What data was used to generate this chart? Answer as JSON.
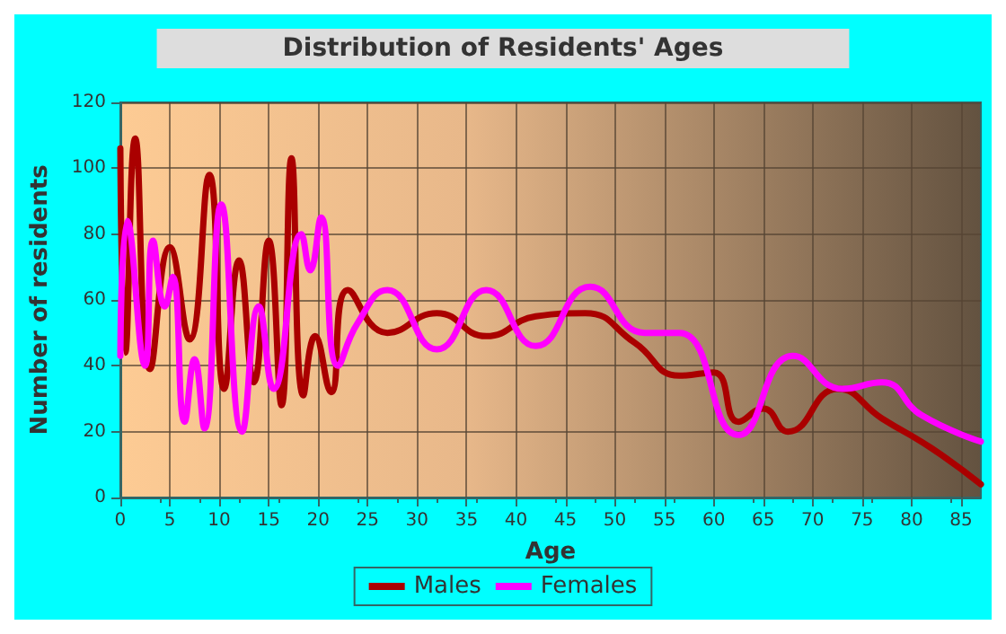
{
  "chart_data": {
    "type": "line",
    "title": "Distribution of Residents' Ages",
    "xlabel": "Age",
    "ylabel": "Number of residents",
    "xlim": [
      0,
      87
    ],
    "xticks": [
      0,
      5,
      10,
      15,
      20,
      25,
      30,
      35,
      40,
      45,
      50,
      55,
      60,
      65,
      70,
      75,
      80,
      85
    ],
    "ylim": [
      0,
      120
    ],
    "yticks": [
      0,
      20,
      40,
      60,
      80,
      100,
      120
    ],
    "grid": true,
    "legend": "bottom",
    "marker": "none",
    "line_style": "solid",
    "series": [
      {
        "name": "Males",
        "color": "#aa0000",
        "x": [
          0,
          0.5,
          1.5,
          3,
          5,
          7,
          9,
          10.5,
          12,
          13.5,
          15,
          16.3,
          17.3,
          18.5,
          19.7,
          21.3,
          23,
          27,
          32,
          37,
          42,
          47,
          52,
          56.5,
          60,
          62.5,
          65,
          67.5,
          72.5,
          77,
          82,
          87
        ],
        "values": [
          106,
          44,
          109,
          39,
          76,
          48,
          98,
          33,
          72,
          35,
          78,
          28,
          103,
          31,
          49,
          32,
          63,
          50,
          56,
          49,
          55,
          56,
          47,
          37,
          38,
          23,
          27,
          20,
          33,
          24,
          15,
          4
        ]
      },
      {
        "name": "Females",
        "color": "#ff00ff",
        "x": [
          0,
          0.7,
          2.5,
          3.3,
          4.5,
          5.3,
          6.5,
          7.5,
          8.5,
          10.2,
          12.3,
          14,
          15.5,
          18.3,
          19.2,
          20.3,
          22,
          24,
          27,
          32,
          37,
          42,
          47.5,
          53,
          56.5,
          62.5,
          68,
          73,
          77,
          81,
          87
        ],
        "values": [
          43,
          84,
          40,
          78,
          58,
          67,
          23,
          42,
          21,
          89,
          20,
          58,
          33,
          80,
          69,
          85,
          40,
          53,
          63,
          45,
          63,
          46,
          64,
          50,
          50,
          19,
          43,
          33,
          35,
          25,
          17
        ]
      }
    ]
  }
}
